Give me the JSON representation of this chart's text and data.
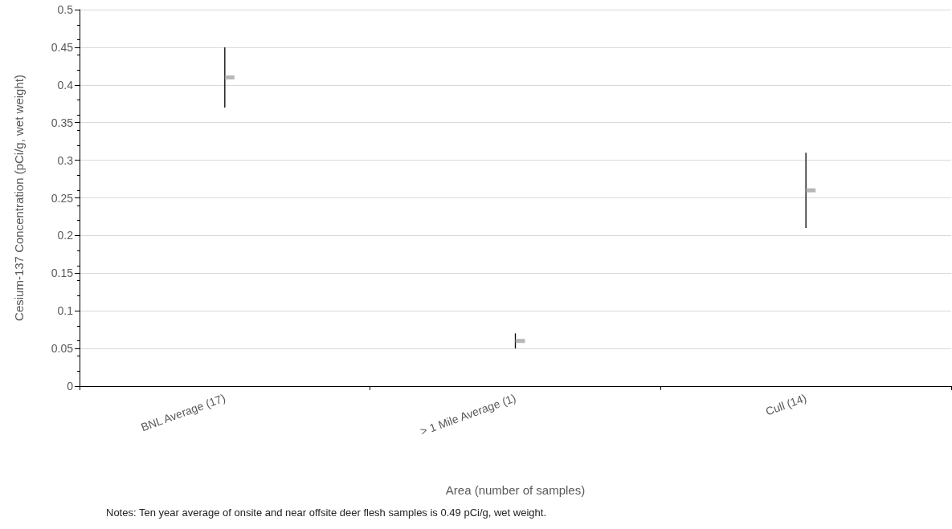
{
  "chart_data": {
    "type": "scatter",
    "xlabel": "Area (number of samples)",
    "ylabel": "Cesium-137 Concentration (pCi/g, wet weight)",
    "categories": [
      "BNL Average (17)",
      "> 1 Mile Average (1)",
      "Cull (14)"
    ],
    "series": [
      {
        "color": "#a5a5a5",
        "values": [
          0.41,
          0.06,
          0.26
        ],
        "errors": [
          0.04,
          0.01,
          0.05
        ]
      }
    ],
    "ylim": [
      0,
      0.5
    ],
    "yticks": [
      0,
      0.05,
      0.1,
      0.15,
      0.2,
      0.25,
      0.3,
      0.35,
      0.4,
      0.45,
      0.5
    ],
    "grid": "y",
    "marker": "square",
    "annotations": [
      "Notes: Ten year average of onsite and near offsite deer flesh samples is 0.49 pCi/g, wet weight."
    ]
  }
}
